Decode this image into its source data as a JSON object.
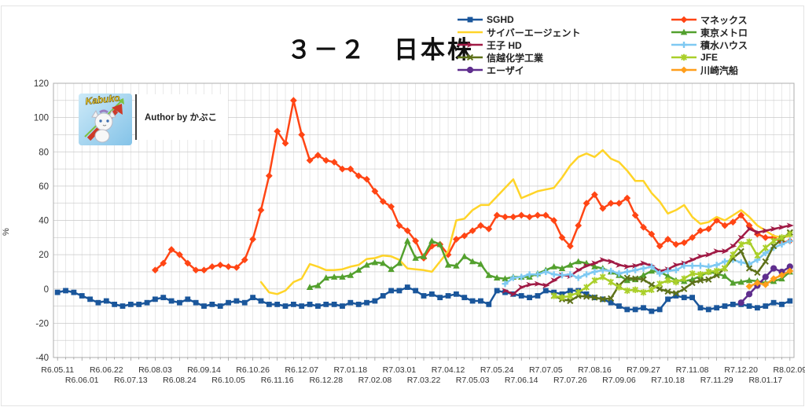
{
  "branding": {
    "logo_text": "Kabuko",
    "author_text": "Author by かぶこ"
  },
  "chart_data": {
    "type": "line",
    "title": "３－２　日本株",
    "xlabel": "",
    "ylabel": "%",
    "ylim": [
      -40,
      120
    ],
    "y_tick_labels": [
      -40,
      -20,
      0,
      20,
      40,
      60,
      80,
      100,
      120
    ],
    "y_grid_step": 10,
    "grid": true,
    "n_points": 91,
    "x_tick_every": 3,
    "x_tick_labels": [
      "R6.05.11",
      "R6.06.01",
      "R6.06.22",
      "R6.07.13",
      "R6.08.03",
      "R6.08.24",
      "R6.09.14",
      "R6.10.05",
      "R6.10.26",
      "R6.11.16",
      "R6.12.07",
      "R6.12.28",
      "R7.01.18",
      "R7.02.08",
      "R7.03.01",
      "R7.03.22",
      "R7.04.12",
      "R7.05.03",
      "R7.05.24",
      "R7.06.14",
      "R7.07.05",
      "R7.07.26",
      "R7.08.16",
      "R7.09.06",
      "R7.09.27",
      "R7.10.18",
      "R7.11.08",
      "R7.11.29",
      "R7.12.20",
      "R8.01.17",
      "R8.02.09"
    ],
    "legend_position": "top-right",
    "legend_columns": [
      [
        "SGHD",
        "サイバーエージェント",
        "王子 HD",
        "信越化学工業",
        "エーザイ"
      ],
      [
        "マネックス",
        "東京メトロ",
        "積水ハウス",
        "JFE",
        "川崎汽船"
      ]
    ],
    "series": [
      {
        "name": "SGHD",
        "color": "#1A569B",
        "marker": "square",
        "start": 0,
        "values": [
          -2,
          -1,
          -2,
          -4,
          -6,
          -8,
          -7,
          -9,
          -10,
          -9,
          -9,
          -8,
          -6,
          -5,
          -7,
          -8,
          -6,
          -8,
          -10,
          -9,
          -10,
          -8,
          -7,
          -8,
          -5,
          -7,
          -9,
          -9,
          -10,
          -9,
          -10,
          -9,
          -10,
          -9,
          -9,
          -10,
          -8,
          -9,
          -8,
          -7,
          -4,
          -1,
          -1,
          1,
          -1,
          -4,
          -3,
          -5,
          -4,
          -3,
          -5,
          -7,
          -7,
          -9,
          -1,
          -2,
          -3,
          -4,
          -5,
          -4,
          -1,
          -2,
          -3,
          -1,
          -1,
          -3,
          -5,
          -6,
          -8,
          -10,
          -12,
          -12,
          -11,
          -13,
          -12,
          -6,
          -4,
          -5,
          -5,
          -11,
          -12,
          -11,
          -10,
          -9,
          -9,
          -10,
          -11,
          -10,
          -8,
          -9,
          -7
        ]
      },
      {
        "name": "サイバーエージェント",
        "color": "#FFD428",
        "marker": "none",
        "start": 25,
        "values": [
          4,
          -2,
          -3,
          -1,
          4,
          6,
          14.5,
          13,
          11,
          11,
          11.5,
          13,
          14,
          17.5,
          18,
          19.5,
          19,
          17,
          12,
          11.5,
          11,
          10,
          16,
          22,
          40,
          41,
          46,
          49,
          49,
          54,
          59,
          64,
          53,
          55,
          57,
          58,
          59,
          65,
          72,
          77,
          79,
          77,
          81,
          76,
          74,
          69,
          63,
          63,
          56,
          51,
          44,
          46,
          49,
          42,
          38,
          39,
          42,
          40,
          43,
          46,
          42,
          37,
          34,
          31,
          30,
          31
        ]
      },
      {
        "name": "王子 HD",
        "color": "#A01A45",
        "marker": "arrow",
        "start": 55,
        "values": [
          -1,
          -3,
          1,
          2.5,
          3,
          2,
          5,
          8,
          7.5,
          11,
          13.5,
          15,
          17,
          16,
          14,
          13,
          13.5,
          15,
          13.5,
          10.5,
          11.5,
          14,
          15,
          17,
          19,
          20,
          22,
          22,
          25,
          30,
          35,
          33,
          34,
          35,
          36,
          37
        ]
      },
      {
        "name": "信越化学工業",
        "color": "#5D7119",
        "marker": "x",
        "start": 61,
        "values": [
          -4,
          -6,
          -7,
          -4,
          -4.5,
          -5,
          -6,
          -5.5,
          2,
          6.5,
          6,
          5.5,
          2.5,
          0,
          -1.5,
          -2.5,
          0,
          3.5,
          5,
          5.5,
          8,
          12,
          18,
          22,
          12,
          9.5,
          16,
          25,
          29,
          33
        ]
      },
      {
        "name": "エーザイ",
        "color": "#5F2E8E",
        "marker": "circle",
        "start": 84,
        "values": [
          -8,
          -3,
          2,
          7,
          12,
          10,
          13
        ]
      },
      {
        "name": "マネックス",
        "color": "#FF4514",
        "marker": "diamond",
        "start": 12,
        "values": [
          11,
          15,
          23,
          20,
          15,
          11,
          11,
          13,
          14,
          13,
          12.5,
          17,
          29,
          46,
          66,
          92,
          85,
          110,
          90,
          75,
          78,
          75,
          74,
          70,
          70,
          66,
          64,
          57,
          51,
          48,
          37,
          34,
          28,
          18,
          25,
          26,
          20,
          29,
          31,
          34,
          37,
          35,
          43,
          42,
          42,
          43,
          42,
          43,
          43,
          40,
          30,
          25,
          37,
          50,
          55,
          47,
          50,
          50,
          53,
          43,
          36,
          32,
          25,
          29,
          26,
          27,
          30,
          34,
          35,
          40,
          37,
          39,
          43,
          37,
          32,
          30,
          30,
          27,
          28
        ]
      },
      {
        "name": "東京メトロ",
        "color": "#53A02E",
        "marker": "triangle",
        "start": 31,
        "values": [
          1,
          2,
          6.5,
          7,
          7,
          8,
          11,
          14,
          15.5,
          15,
          11.5,
          15,
          28,
          18,
          19,
          28,
          26,
          14,
          13.5,
          19,
          16,
          14.5,
          8,
          6.5,
          6,
          7,
          7,
          7,
          9,
          11,
          13,
          12,
          14,
          16,
          15,
          13,
          12,
          10,
          8,
          5,
          5.5,
          8,
          10.5,
          10,
          7.5,
          5,
          4.5,
          5.5,
          7.5,
          10,
          9,
          7.5,
          3.5,
          4,
          5,
          4.5,
          3.5,
          4.5,
          6,
          10
        ]
      },
      {
        "name": "積水ハウス",
        "color": "#7FC9F2",
        "marker": "plus",
        "start": 55,
        "values": [
          3,
          6.5,
          7,
          8.5,
          8.5,
          10,
          8.5,
          8,
          8.5,
          6.5,
          8.5,
          10,
          11,
          10.5,
          9,
          10,
          11,
          12,
          13,
          9,
          10.5,
          11,
          13.5,
          13.5,
          13.5,
          13,
          14,
          16,
          17,
          15.5,
          14.5,
          17,
          21,
          24,
          26,
          28
        ]
      },
      {
        "name": "JFE",
        "color": "#AACF2A",
        "marker": "asterisk",
        "start": 61,
        "values": [
          -4,
          -5,
          -4,
          -2,
          1,
          5,
          7,
          4,
          1,
          -1,
          -0.5,
          -2,
          -0.5,
          3,
          5,
          4,
          6,
          9,
          8.5,
          10,
          10.5,
          12,
          20,
          26,
          27.5,
          19.5,
          24,
          28,
          30,
          32
        ]
      },
      {
        "name": "川崎汽船",
        "color": "#FF9E1B",
        "marker": "diamond",
        "start": 85,
        "values": [
          1.5,
          3.5,
          2.5,
          6,
          8,
          10.5
        ]
      }
    ]
  }
}
